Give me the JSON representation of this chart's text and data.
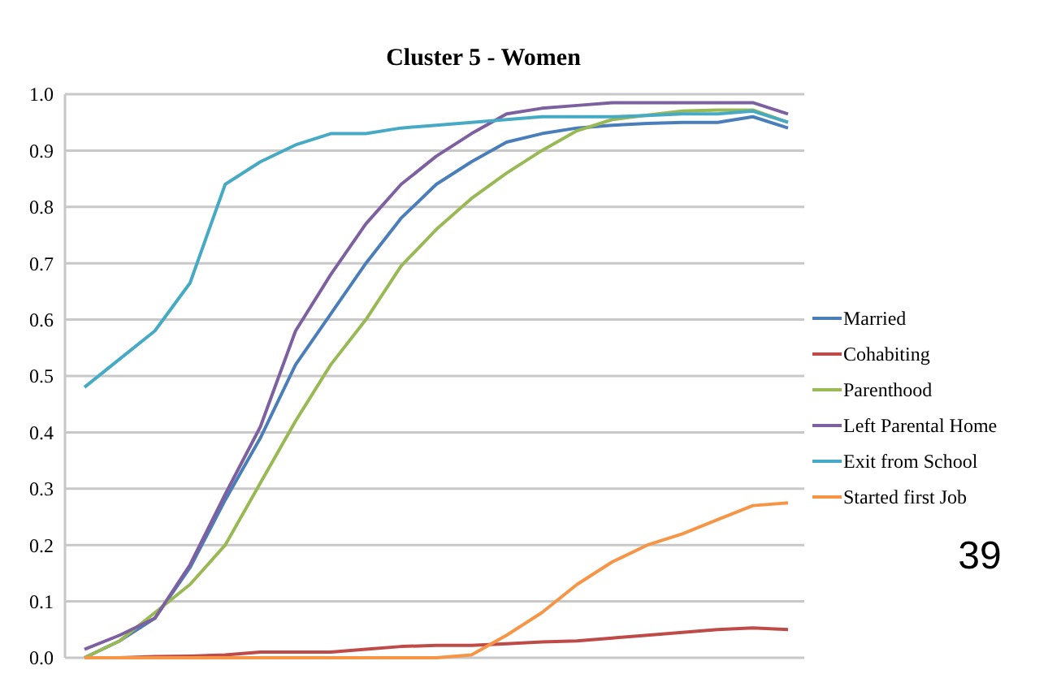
{
  "chart_data": {
    "type": "line",
    "title": "Cluster 5 - Women",
    "categories": [
      null,
      null,
      null,
      null,
      null,
      null,
      null,
      null,
      null,
      null,
      null,
      null,
      null,
      null,
      null,
      null,
      null,
      null,
      null,
      null,
      null
    ],
    "series": [
      {
        "name": "Married",
        "color": "#4a7ebb",
        "values": [
          0.0,
          0.03,
          0.07,
          0.16,
          0.28,
          0.39,
          0.52,
          0.61,
          0.7,
          0.78,
          0.84,
          0.88,
          0.915,
          0.93,
          0.94,
          0.945,
          0.948,
          0.95,
          0.95,
          0.96,
          0.94
        ]
      },
      {
        "name": "Cohabiting",
        "color": "#be4b48",
        "values": [
          0.0,
          0.0,
          0.002,
          0.003,
          0.005,
          0.01,
          0.01,
          0.01,
          0.015,
          0.02,
          0.022,
          0.022,
          0.025,
          0.028,
          0.03,
          0.035,
          0.04,
          0.045,
          0.05,
          0.053,
          0.05
        ]
      },
      {
        "name": "Parenthood",
        "color": "#98b954",
        "values": [
          0.0,
          0.03,
          0.08,
          0.13,
          0.2,
          0.31,
          0.42,
          0.52,
          0.6,
          0.695,
          0.76,
          0.815,
          0.86,
          0.9,
          0.935,
          0.955,
          0.963,
          0.97,
          0.972,
          0.972,
          0.95
        ]
      },
      {
        "name": "Left Parental Home",
        "color": "#7d60a0",
        "values": [
          0.015,
          0.04,
          0.07,
          0.165,
          0.29,
          0.41,
          0.58,
          0.68,
          0.77,
          0.84,
          0.89,
          0.93,
          0.965,
          0.975,
          0.98,
          0.985,
          0.985,
          0.985,
          0.985,
          0.985,
          0.965
        ]
      },
      {
        "name": "Exit from School",
        "color": "#46aac5",
        "values": [
          0.48,
          0.53,
          0.58,
          0.665,
          0.84,
          0.88,
          0.91,
          0.93,
          0.93,
          0.94,
          0.945,
          0.95,
          0.955,
          0.96,
          0.96,
          0.96,
          0.962,
          0.965,
          0.965,
          0.97,
          0.95
        ]
      },
      {
        "name": "Started first Job",
        "color": "#f69546",
        "values": [
          0,
          0,
          0,
          0,
          0,
          0,
          0,
          0,
          0,
          0,
          0,
          0.005,
          0.04,
          0.08,
          0.13,
          0.17,
          0.2,
          0.22,
          0.245,
          0.27,
          0.275
        ]
      }
    ],
    "ylim": [
      0,
      1
    ],
    "yticks": [
      {
        "value": 0,
        "label": "0.0"
      },
      0.1,
      0.2,
      0.3,
      0.4,
      0.5,
      0.6,
      0.7,
      0.8,
      0.9,
      {
        "value": 1,
        "label": "1.0"
      }
    ],
    "grid": "y",
    "legend": "right",
    "marker": "none",
    "line_style": "solid",
    "tick_labels": "y",
    "annotations": [
      "39"
    ]
  }
}
